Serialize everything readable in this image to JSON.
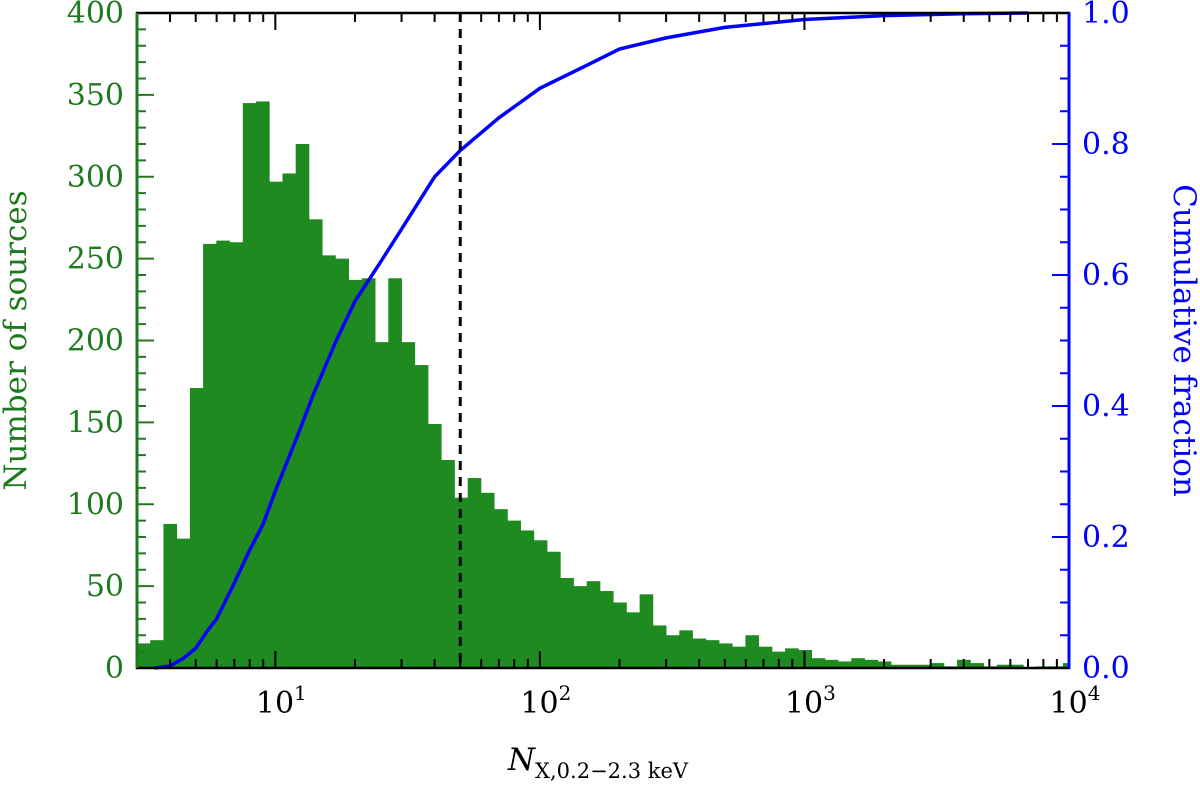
{
  "chart_data": {
    "type": "bar",
    "title": "",
    "x_scale": "log",
    "xlim": [
      3,
      10000
    ],
    "x_ticks": [
      {
        "value": 10,
        "base": "10",
        "exp": "1"
      },
      {
        "value": 100,
        "base": "10",
        "exp": "2"
      },
      {
        "value": 1000,
        "base": "10",
        "exp": "3"
      },
      {
        "value": 10000,
        "base": "10",
        "exp": "4"
      }
    ],
    "xlabel": {
      "symbol": "N",
      "subscript": "X,0.2−2.3 keV"
    },
    "ylabel_left": "Number of sources",
    "ylim_left": [
      0,
      400
    ],
    "y_ticks_left": [
      "0",
      "50",
      "100",
      "150",
      "200",
      "250",
      "300",
      "350",
      "400"
    ],
    "ylabel_right": "Cumulative fraction",
    "ylim_right": [
      0,
      1
    ],
    "y_ticks_right": [
      "0.0",
      "0.2",
      "0.4",
      "0.6",
      "0.8",
      "1.0"
    ],
    "threshold_x": 50,
    "colors": {
      "histogram": "#1f8a1f",
      "cumulative": "#0000ff",
      "left_axis": "#1f7a1f",
      "right_axis": "#0000ff",
      "threshold": "#000000"
    },
    "bin_log_start": 0.477,
    "bin_log_width": 0.05,
    "histogram": [
      15,
      17,
      88,
      79,
      171,
      259,
      261,
      260,
      345,
      346,
      297,
      302,
      320,
      274,
      252,
      250,
      237,
      238,
      199,
      238,
      199,
      185,
      149,
      127,
      104,
      116,
      107,
      97,
      90,
      84,
      78,
      71,
      55,
      50,
      53,
      47,
      40,
      34,
      45,
      26,
      20,
      23,
      18,
      17,
      15,
      13,
      20,
      13,
      10,
      12,
      11,
      6,
      5,
      4,
      6,
      5,
      4,
      2,
      2,
      2,
      3,
      1,
      5,
      3,
      1,
      2,
      2,
      0,
      1,
      1,
      3,
      1,
      1
    ],
    "cumulative": [
      {
        "x": 3.5,
        "y": 0.0
      },
      {
        "x": 4.0,
        "y": 0.003
      },
      {
        "x": 4.5,
        "y": 0.015
      },
      {
        "x": 5.0,
        "y": 0.03
      },
      {
        "x": 5.5,
        "y": 0.055
      },
      {
        "x": 6.0,
        "y": 0.075
      },
      {
        "x": 7.0,
        "y": 0.13
      },
      {
        "x": 8.0,
        "y": 0.18
      },
      {
        "x": 9.0,
        "y": 0.22
      },
      {
        "x": 10.0,
        "y": 0.27
      },
      {
        "x": 12.0,
        "y": 0.35
      },
      {
        "x": 14.0,
        "y": 0.42
      },
      {
        "x": 17.0,
        "y": 0.5
      },
      {
        "x": 20.0,
        "y": 0.56
      },
      {
        "x": 25.0,
        "y": 0.62
      },
      {
        "x": 30.0,
        "y": 0.67
      },
      {
        "x": 40.0,
        "y": 0.75
      },
      {
        "x": 50.0,
        "y": 0.79
      },
      {
        "x": 70.0,
        "y": 0.84
      },
      {
        "x": 100.0,
        "y": 0.885
      },
      {
        "x": 150.0,
        "y": 0.92
      },
      {
        "x": 200.0,
        "y": 0.945
      },
      {
        "x": 300.0,
        "y": 0.962
      },
      {
        "x": 500.0,
        "y": 0.978
      },
      {
        "x": 1000.0,
        "y": 0.99
      },
      {
        "x": 2000.0,
        "y": 0.996
      },
      {
        "x": 4000.0,
        "y": 0.999
      },
      {
        "x": 7000.0,
        "y": 1.0
      }
    ]
  }
}
